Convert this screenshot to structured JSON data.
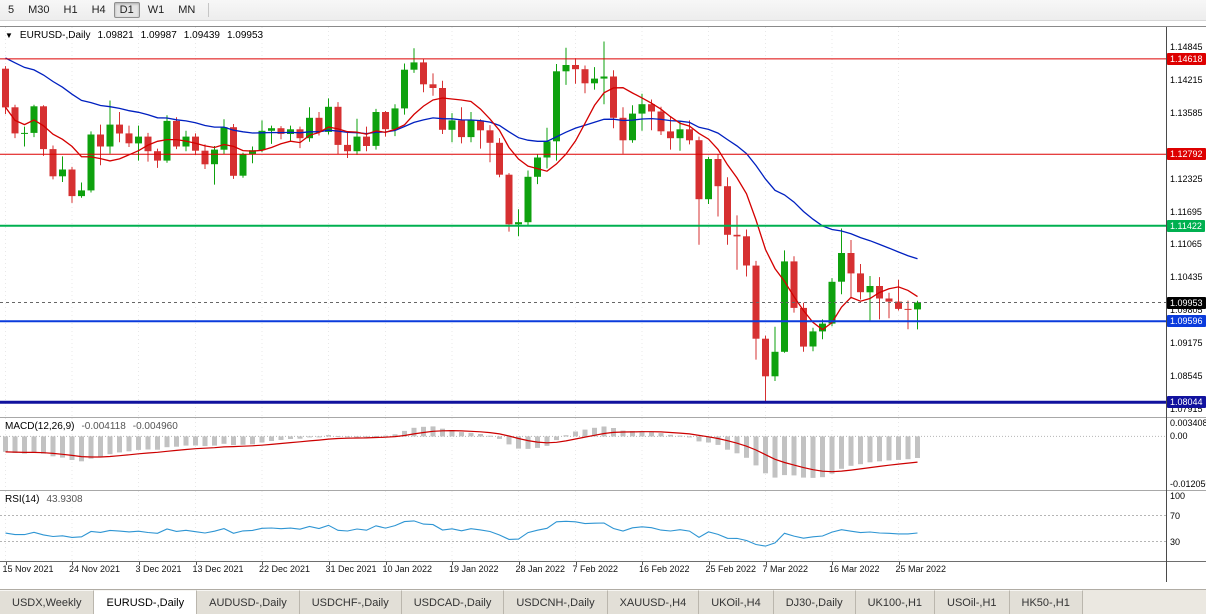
{
  "toolbar": {
    "timeframes": [
      {
        "label": "5",
        "active": false
      },
      {
        "label": "M30",
        "active": false
      },
      {
        "label": "H1",
        "active": false
      },
      {
        "label": "H4",
        "active": false
      },
      {
        "label": "D1",
        "active": true
      },
      {
        "label": "W1",
        "active": false
      },
      {
        "label": "MN",
        "active": false
      }
    ]
  },
  "chart": {
    "title": "EURUSD-,Daily",
    "ohlc": {
      "open": "1.09821",
      "high": "1.09987",
      "low": "1.09439",
      "close": "1.09953"
    },
    "price_axis_labels": [
      "1.14845",
      "1.14215",
      "1.13585",
      "1.12325",
      "1.11695",
      "1.11065",
      "1.10435",
      "1.09805",
      "1.09175",
      "1.08545",
      "1.07915"
    ],
    "hlines": [
      {
        "value": 1.14618,
        "label": "1.14618",
        "color": "#dd0000",
        "width": 1
      },
      {
        "value": 1.12792,
        "label": "1.12792",
        "color": "#dd0000",
        "width": 1
      },
      {
        "value": 1.11422,
        "label": "1.11422",
        "color": "#00b050",
        "width": 2
      },
      {
        "value": 1.09596,
        "label": "1.09596",
        "color": "#0a3bdc",
        "width": 2
      },
      {
        "value": 1.08044,
        "label": "1.08044",
        "color": "#11129e",
        "width": 3
      }
    ],
    "current_price": {
      "value": 1.09953,
      "label": "1.09953",
      "color": "#000000"
    }
  },
  "colors": {
    "candle_up": "#0ea10e",
    "candle_down": "#d63031",
    "ma_fast": "#d40000",
    "ma_slow": "#0020c0",
    "macd_hist": "#c2c2c2",
    "macd_signal": "#cc0000",
    "rsi_line": "#2e95d3",
    "grid": "#e8e8e8",
    "level_dash": "#b5b5b5"
  },
  "macd": {
    "label": "MACD(12,26,9)",
    "value_main": "-0.004118",
    "value_signal": "-0.004960",
    "axis_labels": [
      {
        "text": "0.003408",
        "value": 0.003408
      },
      {
        "text": "0.00",
        "value": 0
      },
      {
        "text": "-0.012050",
        "value": -0.01205
      }
    ]
  },
  "rsi": {
    "label": "RSI(14)",
    "value": "43.9308",
    "axis_labels": [
      {
        "text": "100",
        "value": 100
      },
      {
        "text": "70",
        "value": 70
      },
      {
        "text": "30",
        "value": 30
      }
    ],
    "levels": [
      70,
      30
    ]
  },
  "tabs": [
    {
      "label": "USDX,Weekly",
      "active": false
    },
    {
      "label": "EURUSD-,Daily",
      "active": true
    },
    {
      "label": "AUDUSD-,Daily",
      "active": false
    },
    {
      "label": "USDCHF-,Daily",
      "active": false
    },
    {
      "label": "USDCAD-,Daily",
      "active": false
    },
    {
      "label": "USDCNH-,Daily",
      "active": false
    },
    {
      "label": "XAUUSD-,H4",
      "active": false
    },
    {
      "label": "UKOil-,H4",
      "active": false
    },
    {
      "label": "DJ30-,Daily",
      "active": false
    },
    {
      "label": "UK100-,H1",
      "active": false
    },
    {
      "label": "USOil-,H1",
      "active": false
    },
    {
      "label": "HK50-,H1",
      "active": false
    }
  ],
  "chart_data": {
    "type": "candlestick",
    "symbol": "EURUSD-",
    "timeframe": "Daily",
    "price_range": [
      1.0776,
      1.1523
    ],
    "x_labels": [
      {
        "label": "15 Nov 2021",
        "i": 0
      },
      {
        "label": "24 Nov 2021",
        "i": 7
      },
      {
        "label": "3 Dec 2021",
        "i": 14
      },
      {
        "label": "13 Dec 2021",
        "i": 20
      },
      {
        "label": "22 Dec 2021",
        "i": 27
      },
      {
        "label": "31 Dec 2021",
        "i": 34
      },
      {
        "label": "10 Jan 2022",
        "i": 40
      },
      {
        "label": "19 Jan 2022",
        "i": 47
      },
      {
        "label": "28 Jan 2022",
        "i": 54
      },
      {
        "label": "7 Feb 2022",
        "i": 60
      },
      {
        "label": "16 Feb 2022",
        "i": 67
      },
      {
        "label": "25 Feb 2022",
        "i": 74
      },
      {
        "label": "7 Mar 2022",
        "i": 80
      },
      {
        "label": "16 Mar 2022",
        "i": 87
      },
      {
        "label": "25 Mar 2022",
        "i": 94
      }
    ],
    "candles": [
      [
        1.1443,
        1.1448,
        1.1356,
        1.1369
      ],
      [
        1.1369,
        1.1374,
        1.131,
        1.1319
      ],
      [
        1.1319,
        1.1332,
        1.1294,
        1.132
      ],
      [
        1.132,
        1.1374,
        1.1312,
        1.1371
      ],
      [
        1.1371,
        1.1373,
        1.1276,
        1.1289
      ],
      [
        1.1289,
        1.1296,
        1.1231,
        1.1237
      ],
      [
        1.1237,
        1.1275,
        1.1226,
        1.125
      ],
      [
        1.125,
        1.1255,
        1.1186,
        1.1199
      ],
      [
        1.1199,
        1.1225,
        1.1196,
        1.121
      ],
      [
        1.121,
        1.1323,
        1.1206,
        1.1317
      ],
      [
        1.1317,
        1.1336,
        1.1258,
        1.1294
      ],
      [
        1.1294,
        1.1382,
        1.128,
        1.1336
      ],
      [
        1.1336,
        1.136,
        1.1302,
        1.1319
      ],
      [
        1.1319,
        1.1334,
        1.1293,
        1.13
      ],
      [
        1.13,
        1.1334,
        1.1267,
        1.1313
      ],
      [
        1.1313,
        1.132,
        1.1265,
        1.1285
      ],
      [
        1.1285,
        1.129,
        1.1253,
        1.1267
      ],
      [
        1.1267,
        1.1354,
        1.1263,
        1.1343
      ],
      [
        1.1343,
        1.135,
        1.1289,
        1.1294
      ],
      [
        1.1294,
        1.1324,
        1.1285,
        1.1313
      ],
      [
        1.1313,
        1.1319,
        1.1278,
        1.1286
      ],
      [
        1.1286,
        1.1298,
        1.1251,
        1.126
      ],
      [
        1.126,
        1.1295,
        1.1221,
        1.1288
      ],
      [
        1.1288,
        1.1346,
        1.1279,
        1.1331
      ],
      [
        1.1331,
        1.1337,
        1.1232,
        1.1238
      ],
      [
        1.1238,
        1.1282,
        1.1234,
        1.1279
      ],
      [
        1.1279,
        1.1294,
        1.1262,
        1.1287
      ],
      [
        1.1287,
        1.1344,
        1.1283,
        1.1324
      ],
      [
        1.1324,
        1.1334,
        1.1299,
        1.1329
      ],
      [
        1.1329,
        1.1333,
        1.1308,
        1.1318
      ],
      [
        1.1318,
        1.1334,
        1.1305,
        1.1327
      ],
      [
        1.1327,
        1.1332,
        1.1291,
        1.131
      ],
      [
        1.131,
        1.1369,
        1.1303,
        1.1349
      ],
      [
        1.1349,
        1.136,
        1.1315,
        1.1322
      ],
      [
        1.1322,
        1.1386,
        1.1317,
        1.137
      ],
      [
        1.137,
        1.1379,
        1.1279,
        1.1297
      ],
      [
        1.1297,
        1.1323,
        1.1272,
        1.1285
      ],
      [
        1.1285,
        1.1347,
        1.1278,
        1.1313
      ],
      [
        1.1313,
        1.1332,
        1.1285,
        1.1295
      ],
      [
        1.1295,
        1.1366,
        1.1288,
        1.136
      ],
      [
        1.136,
        1.1362,
        1.1313,
        1.1327
      ],
      [
        1.1327,
        1.1375,
        1.1314,
        1.1367
      ],
      [
        1.1367,
        1.1453,
        1.1355,
        1.1441
      ],
      [
        1.1441,
        1.1482,
        1.1435,
        1.1455
      ],
      [
        1.1455,
        1.1461,
        1.1398,
        1.1413
      ],
      [
        1.1413,
        1.1434,
        1.1391,
        1.1406
      ],
      [
        1.1406,
        1.142,
        1.1318,
        1.1326
      ],
      [
        1.1326,
        1.1358,
        1.1302,
        1.1344
      ],
      [
        1.1344,
        1.1369,
        1.13,
        1.1312
      ],
      [
        1.1312,
        1.136,
        1.1302,
        1.1344
      ],
      [
        1.1344,
        1.1346,
        1.129,
        1.1325
      ],
      [
        1.1325,
        1.1335,
        1.1264,
        1.1301
      ],
      [
        1.1301,
        1.131,
        1.1235,
        1.124
      ],
      [
        1.124,
        1.1243,
        1.1131,
        1.1145
      ],
      [
        1.1145,
        1.1174,
        1.1122,
        1.1149
      ],
      [
        1.1149,
        1.1248,
        1.1142,
        1.1236
      ],
      [
        1.1236,
        1.1279,
        1.1222,
        1.1273
      ],
      [
        1.1273,
        1.133,
        1.1252,
        1.1304
      ],
      [
        1.1304,
        1.1452,
        1.1267,
        1.1438
      ],
      [
        1.1438,
        1.1483,
        1.1412,
        1.145
      ],
      [
        1.145,
        1.1463,
        1.1414,
        1.1442
      ],
      [
        1.1442,
        1.1449,
        1.1396,
        1.1415
      ],
      [
        1.1415,
        1.1446,
        1.1403,
        1.1424
      ],
      [
        1.1424,
        1.1495,
        1.1375,
        1.1428
      ],
      [
        1.1428,
        1.144,
        1.1329,
        1.1349
      ],
      [
        1.1349,
        1.1369,
        1.128,
        1.1306
      ],
      [
        1.1306,
        1.1373,
        1.1301,
        1.1357
      ],
      [
        1.1357,
        1.1395,
        1.1324,
        1.1375
      ],
      [
        1.1375,
        1.1384,
        1.1325,
        1.1361
      ],
      [
        1.1361,
        1.137,
        1.1316,
        1.1323
      ],
      [
        1.1323,
        1.1352,
        1.1288,
        1.131
      ],
      [
        1.131,
        1.1343,
        1.1286,
        1.1327
      ],
      [
        1.1327,
        1.1344,
        1.1298,
        1.1306
      ],
      [
        1.1306,
        1.1313,
        1.1106,
        1.1193
      ],
      [
        1.1193,
        1.1274,
        1.1184,
        1.127
      ],
      [
        1.127,
        1.1279,
        1.116,
        1.1218
      ],
      [
        1.1218,
        1.1235,
        1.1106,
        1.1125
      ],
      [
        1.1125,
        1.1162,
        1.1058,
        1.1122
      ],
      [
        1.1122,
        1.1135,
        1.1045,
        1.1066
      ],
      [
        1.1066,
        1.1075,
        1.0886,
        1.0926
      ],
      [
        1.0926,
        1.0932,
        1.0806,
        1.0854
      ],
      [
        1.0854,
        1.0949,
        1.0845,
        1.0901
      ],
      [
        1.0901,
        1.1095,
        1.0899,
        1.1074
      ],
      [
        1.1074,
        1.1084,
        1.0976,
        1.0985
      ],
      [
        1.0985,
        1.0995,
        1.0901,
        1.0911
      ],
      [
        1.0911,
        1.0947,
        1.0902,
        1.094
      ],
      [
        1.094,
        1.0963,
        1.0925,
        1.0955
      ],
      [
        1.0955,
        1.1042,
        1.095,
        1.1035
      ],
      [
        1.1035,
        1.1137,
        1.1011,
        1.109
      ],
      [
        1.109,
        1.1115,
        1.1003,
        1.1051
      ],
      [
        1.1051,
        1.1069,
        1.1001,
        1.1015
      ],
      [
        1.1015,
        1.1046,
        1.0961,
        1.1027
      ],
      [
        1.1027,
        1.1044,
        1.0963,
        1.1003
      ],
      [
        1.1003,
        1.1014,
        1.0965,
        1.0997
      ],
      [
        1.0997,
        1.1039,
        1.098,
        1.0983
      ],
      [
        1.0983,
        1.0999,
        1.0944,
        1.0982
      ],
      [
        1.09821,
        1.09987,
        1.09439,
        1.09953
      ]
    ]
  }
}
